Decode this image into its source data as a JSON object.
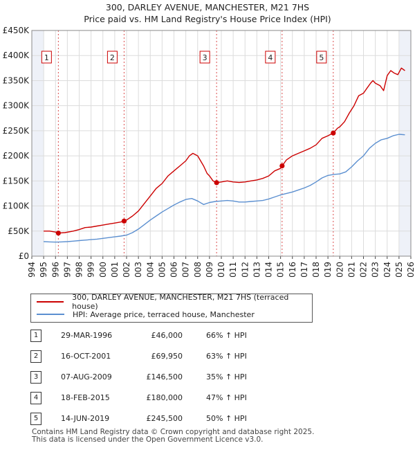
{
  "header": {
    "title": "300, DARLEY AVENUE, MANCHESTER, M21 7HS",
    "subtitle": "Price paid vs. HM Land Registry's House Price Index (HPI)"
  },
  "colors": {
    "property": "#cc0000",
    "hpi": "#5b8fd0",
    "band": "#eef1f8"
  },
  "chart_data": {
    "type": "line",
    "title": "300, DARLEY AVENUE, MANCHESTER, M21 7HS",
    "xlim": [
      1994,
      2026
    ],
    "ylim": [
      0,
      450000
    ],
    "x_ticks": [
      1994,
      1995,
      1996,
      1997,
      1998,
      1999,
      2000,
      2001,
      2002,
      2003,
      2004,
      2005,
      2006,
      2007,
      2008,
      2009,
      2010,
      2011,
      2012,
      2013,
      2014,
      2015,
      2016,
      2017,
      2018,
      2019,
      2020,
      2021,
      2022,
      2023,
      2024,
      2025,
      2026
    ],
    "y_ticks": [
      {
        "value": 0,
        "label": "£0"
      },
      {
        "value": 50000,
        "label": "£50K"
      },
      {
        "value": 100000,
        "label": "£100K"
      },
      {
        "value": 150000,
        "label": "£150K"
      },
      {
        "value": 200000,
        "label": "£200K"
      },
      {
        "value": 250000,
        "label": "£250K"
      },
      {
        "value": 300000,
        "label": "£300K"
      },
      {
        "value": 350000,
        "label": "£350K"
      },
      {
        "value": 400000,
        "label": "£400K"
      },
      {
        "value": 450000,
        "label": "£450K"
      }
    ],
    "series": [
      {
        "name": "300, DARLEY AVENUE, MANCHESTER, M21 7HS (terraced house)",
        "color": "#cc0000",
        "x": [
          1995.0,
          1995.5,
          1996.0,
          1996.24,
          1996.8,
          1997.5,
          1998.0,
          1998.5,
          1999.0,
          1999.5,
          2000.0,
          2000.5,
          2001.0,
          2001.5,
          2001.79,
          2002.0,
          2002.5,
          2003.0,
          2003.5,
          2004.0,
          2004.5,
          2005.0,
          2005.5,
          2006.0,
          2006.5,
          2007.0,
          2007.3,
          2007.6,
          2008.0,
          2008.5,
          2008.8,
          2009.0,
          2009.3,
          2009.6,
          2010.0,
          2010.5,
          2011.0,
          2011.5,
          2012.0,
          2012.5,
          2013.0,
          2013.5,
          2014.0,
          2014.5,
          2015.0,
          2015.13,
          2015.5,
          2016.0,
          2016.5,
          2017.0,
          2017.5,
          2018.0,
          2018.5,
          2019.0,
          2019.45,
          2019.8,
          2020.0,
          2020.4,
          2020.8,
          2021.2,
          2021.6,
          2022.0,
          2022.3,
          2022.6,
          2022.8,
          2023.0,
          2023.4,
          2023.7,
          2024.0,
          2024.3,
          2024.6,
          2024.9,
          2025.2,
          2025.5
        ],
        "values": [
          50000,
          50000,
          48000,
          46000,
          47000,
          50000,
          53000,
          57000,
          58000,
          60000,
          62000,
          64000,
          66000,
          68000,
          69950,
          72000,
          80000,
          90000,
          105000,
          120000,
          135000,
          145000,
          160000,
          170000,
          180000,
          190000,
          200000,
          205000,
          200000,
          180000,
          165000,
          160000,
          150000,
          146500,
          148000,
          150000,
          148000,
          147000,
          148000,
          150000,
          152000,
          155000,
          160000,
          170000,
          175000,
          180000,
          192000,
          200000,
          205000,
          210000,
          215000,
          222000,
          235000,
          240000,
          245500,
          255000,
          258000,
          268000,
          285000,
          300000,
          320000,
          325000,
          335000,
          345000,
          350000,
          345000,
          340000,
          330000,
          360000,
          370000,
          365000,
          362000,
          375000,
          370000
        ]
      },
      {
        "name": "HPI: Average price, terraced house, Manchester",
        "color": "#5b8fd0",
        "x": [
          1995.0,
          1995.5,
          1996.0,
          1996.5,
          1997.0,
          1997.5,
          1998.0,
          1998.5,
          1999.0,
          1999.5,
          2000.0,
          2000.5,
          2001.0,
          2001.5,
          2002.0,
          2002.5,
          2003.0,
          2003.5,
          2004.0,
          2004.5,
          2005.0,
          2005.5,
          2006.0,
          2006.5,
          2007.0,
          2007.5,
          2008.0,
          2008.5,
          2009.0,
          2009.5,
          2010.0,
          2010.5,
          2011.0,
          2011.5,
          2012.0,
          2012.5,
          2013.0,
          2013.5,
          2014.0,
          2014.5,
          2015.0,
          2015.5,
          2016.0,
          2016.5,
          2017.0,
          2017.5,
          2018.0,
          2018.5,
          2019.0,
          2019.5,
          2020.0,
          2020.5,
          2021.0,
          2021.5,
          2022.0,
          2022.5,
          2023.0,
          2023.5,
          2024.0,
          2024.5,
          2025.0,
          2025.5
        ],
        "values": [
          29000,
          28500,
          28000,
          28500,
          29000,
          30000,
          31000,
          32000,
          33000,
          34000,
          35500,
          37000,
          38500,
          40000,
          42000,
          47000,
          54000,
          63000,
          72000,
          80000,
          88000,
          95000,
          102000,
          108000,
          113000,
          115000,
          110000,
          103000,
          107000,
          109000,
          110000,
          111000,
          110000,
          108000,
          108000,
          109000,
          110000,
          111000,
          114000,
          118000,
          122000,
          125000,
          128000,
          132000,
          136000,
          141000,
          148000,
          156000,
          161000,
          163000,
          164000,
          168000,
          178000,
          190000,
          200000,
          215000,
          225000,
          232000,
          235000,
          240000,
          243000,
          242000
        ]
      }
    ],
    "sales": [
      {
        "label": "1",
        "x": 1996.24,
        "value": 46000
      },
      {
        "label": "2",
        "x": 2001.79,
        "value": 69950
      },
      {
        "label": "3",
        "x": 2009.6,
        "value": 146500
      },
      {
        "label": "4",
        "x": 2015.13,
        "value": 180000
      },
      {
        "label": "5",
        "x": 2019.45,
        "value": 245500
      }
    ],
    "shaded_ranges": [
      [
        1994,
        1995
      ],
      [
        2025,
        2026
      ]
    ]
  },
  "legend": {
    "property_label": "300, DARLEY AVENUE, MANCHESTER, M21 7HS (terraced house)",
    "hpi_label": "HPI: Average price, terraced house, Manchester"
  },
  "sales_table": [
    {
      "num": "1",
      "date": "29-MAR-1996",
      "price": "£46,000",
      "hpi": "66% ↑ HPI"
    },
    {
      "num": "2",
      "date": "16-OCT-2001",
      "price": "£69,950",
      "hpi": "63% ↑ HPI"
    },
    {
      "num": "3",
      "date": "07-AUG-2009",
      "price": "£146,500",
      "hpi": "35% ↑ HPI"
    },
    {
      "num": "4",
      "date": "18-FEB-2015",
      "price": "£180,000",
      "hpi": "47% ↑ HPI"
    },
    {
      "num": "5",
      "date": "14-JUN-2019",
      "price": "£245,500",
      "hpi": "50% ↑ HPI"
    }
  ],
  "footer": {
    "line1": "Contains HM Land Registry data © Crown copyright and database right 2025.",
    "line2": "This data is licensed under the Open Government Licence v3.0."
  }
}
